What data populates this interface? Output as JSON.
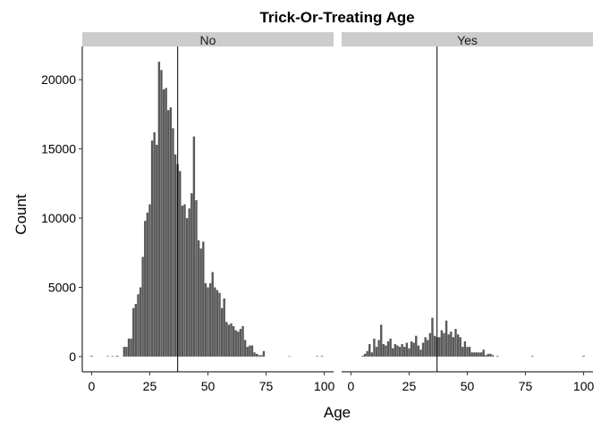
{
  "chart_data": {
    "type": "bar",
    "title": "Trick-Or-Treating Age",
    "xlabel": "Age",
    "ylabel": "Count",
    "xlim": [
      -4,
      104
    ],
    "ylim": [
      -1100,
      22400
    ],
    "x_ticks": [
      0,
      25,
      50,
      75,
      100
    ],
    "y_ticks": [
      0,
      5000,
      10000,
      15000,
      20000
    ],
    "y_tick_labels": [
      "0",
      "5000",
      "10000",
      "15000",
      "20000"
    ],
    "bar_color": "#595959",
    "grid": false,
    "facets": [
      {
        "label": "No",
        "mean_line": 37,
        "series": [
          {
            "x": 0,
            "y": 60
          },
          {
            "x": 7,
            "y": 40
          },
          {
            "x": 9,
            "y": 40
          },
          {
            "x": 11,
            "y": 60
          },
          {
            "x": 14,
            "y": 700
          },
          {
            "x": 15,
            "y": 700
          },
          {
            "x": 16,
            "y": 1300
          },
          {
            "x": 17,
            "y": 1300
          },
          {
            "x": 18,
            "y": 3500
          },
          {
            "x": 19,
            "y": 3800
          },
          {
            "x": 20,
            "y": 4500
          },
          {
            "x": 21,
            "y": 5000
          },
          {
            "x": 22,
            "y": 7200
          },
          {
            "x": 23,
            "y": 9800
          },
          {
            "x": 24,
            "y": 10400
          },
          {
            "x": 25,
            "y": 11000
          },
          {
            "x": 26,
            "y": 15600
          },
          {
            "x": 27,
            "y": 16200
          },
          {
            "x": 28,
            "y": 15300
          },
          {
            "x": 29,
            "y": 21300
          },
          {
            "x": 30,
            "y": 20700
          },
          {
            "x": 31,
            "y": 19300
          },
          {
            "x": 32,
            "y": 19400
          },
          {
            "x": 33,
            "y": 17800
          },
          {
            "x": 34,
            "y": 18000
          },
          {
            "x": 35,
            "y": 16500
          },
          {
            "x": 36,
            "y": 14600
          },
          {
            "x": 37,
            "y": 13900
          },
          {
            "x": 38,
            "y": 13400
          },
          {
            "x": 39,
            "y": 10900
          },
          {
            "x": 40,
            "y": 11000
          },
          {
            "x": 41,
            "y": 10000
          },
          {
            "x": 42,
            "y": 10700
          },
          {
            "x": 43,
            "y": 11800
          },
          {
            "x": 44,
            "y": 15900
          },
          {
            "x": 45,
            "y": 11300
          },
          {
            "x": 46,
            "y": 8400
          },
          {
            "x": 47,
            "y": 7800
          },
          {
            "x": 48,
            "y": 8300
          },
          {
            "x": 49,
            "y": 5300
          },
          {
            "x": 50,
            "y": 5000
          },
          {
            "x": 51,
            "y": 5300
          },
          {
            "x": 52,
            "y": 6100
          },
          {
            "x": 53,
            "y": 5000
          },
          {
            "x": 54,
            "y": 4800
          },
          {
            "x": 55,
            "y": 4600
          },
          {
            "x": 56,
            "y": 3500
          },
          {
            "x": 57,
            "y": 4200
          },
          {
            "x": 58,
            "y": 2500
          },
          {
            "x": 59,
            "y": 2300
          },
          {
            "x": 60,
            "y": 2400
          },
          {
            "x": 61,
            "y": 2200
          },
          {
            "x": 62,
            "y": 1900
          },
          {
            "x": 63,
            "y": 1800
          },
          {
            "x": 64,
            "y": 2000
          },
          {
            "x": 65,
            "y": 2200
          },
          {
            "x": 66,
            "y": 1200
          },
          {
            "x": 67,
            "y": 700
          },
          {
            "x": 68,
            "y": 800
          },
          {
            "x": 69,
            "y": 800
          },
          {
            "x": 70,
            "y": 300
          },
          {
            "x": 71,
            "y": 200
          },
          {
            "x": 72,
            "y": 100
          },
          {
            "x": 73,
            "y": 100
          },
          {
            "x": 74,
            "y": 400
          },
          {
            "x": 85,
            "y": 30
          },
          {
            "x": 97,
            "y": 40
          },
          {
            "x": 99,
            "y": 50
          }
        ]
      },
      {
        "label": "Yes",
        "mean_line": 37,
        "series": [
          {
            "x": 5,
            "y": 60
          },
          {
            "x": 6,
            "y": 200
          },
          {
            "x": 7,
            "y": 400
          },
          {
            "x": 8,
            "y": 900
          },
          {
            "x": 9,
            "y": 300
          },
          {
            "x": 10,
            "y": 1300
          },
          {
            "x": 11,
            "y": 700
          },
          {
            "x": 12,
            "y": 1200
          },
          {
            "x": 13,
            "y": 2300
          },
          {
            "x": 14,
            "y": 900
          },
          {
            "x": 15,
            "y": 800
          },
          {
            "x": 16,
            "y": 1100
          },
          {
            "x": 17,
            "y": 1300
          },
          {
            "x": 18,
            "y": 600
          },
          {
            "x": 19,
            "y": 900
          },
          {
            "x": 20,
            "y": 800
          },
          {
            "x": 21,
            "y": 700
          },
          {
            "x": 22,
            "y": 900
          },
          {
            "x": 23,
            "y": 700
          },
          {
            "x": 24,
            "y": 1000
          },
          {
            "x": 25,
            "y": 600
          },
          {
            "x": 26,
            "y": 1100
          },
          {
            "x": 27,
            "y": 1000
          },
          {
            "x": 28,
            "y": 1500
          },
          {
            "x": 29,
            "y": 800
          },
          {
            "x": 30,
            "y": 500
          },
          {
            "x": 31,
            "y": 1000
          },
          {
            "x": 32,
            "y": 1400
          },
          {
            "x": 33,
            "y": 1200
          },
          {
            "x": 34,
            "y": 1700
          },
          {
            "x": 35,
            "y": 2800
          },
          {
            "x": 36,
            "y": 1500
          },
          {
            "x": 37,
            "y": 1400
          },
          {
            "x": 38,
            "y": 1400
          },
          {
            "x": 39,
            "y": 1900
          },
          {
            "x": 40,
            "y": 1700
          },
          {
            "x": 41,
            "y": 2600
          },
          {
            "x": 42,
            "y": 1600
          },
          {
            "x": 43,
            "y": 1800
          },
          {
            "x": 44,
            "y": 1400
          },
          {
            "x": 45,
            "y": 2000
          },
          {
            "x": 46,
            "y": 1600
          },
          {
            "x": 47,
            "y": 1400
          },
          {
            "x": 48,
            "y": 700
          },
          {
            "x": 49,
            "y": 1100
          },
          {
            "x": 50,
            "y": 700
          },
          {
            "x": 51,
            "y": 700
          },
          {
            "x": 52,
            "y": 300
          },
          {
            "x": 53,
            "y": 300
          },
          {
            "x": 54,
            "y": 300
          },
          {
            "x": 55,
            "y": 300
          },
          {
            "x": 56,
            "y": 300
          },
          {
            "x": 57,
            "y": 500
          },
          {
            "x": 58,
            "y": 100
          },
          {
            "x": 59,
            "y": 200
          },
          {
            "x": 60,
            "y": 200
          },
          {
            "x": 61,
            "y": 100
          },
          {
            "x": 63,
            "y": 50
          },
          {
            "x": 78,
            "y": 50
          },
          {
            "x": 100,
            "y": 60
          }
        ]
      }
    ]
  }
}
